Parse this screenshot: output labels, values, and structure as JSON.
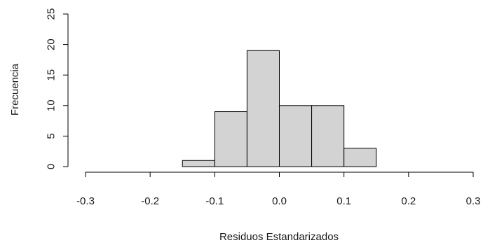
{
  "chart_data": {
    "type": "bar",
    "subtype": "histogram",
    "title": "",
    "xlabel": "Residuos Estandarizados",
    "ylabel": "Frecuencia",
    "bins": [
      {
        "from": -0.15,
        "to": -0.1,
        "count": 1
      },
      {
        "from": -0.1,
        "to": -0.05,
        "count": 9
      },
      {
        "from": -0.05,
        "to": 0.0,
        "count": 19
      },
      {
        "from": 0.0,
        "to": 0.05,
        "count": 10
      },
      {
        "from": 0.05,
        "to": 0.1,
        "count": 10
      },
      {
        "from": 0.1,
        "to": 0.15,
        "count": 3
      }
    ],
    "xlim": [
      -0.3,
      0.3
    ],
    "ylim": [
      0,
      25
    ],
    "x_ticks": [
      -0.3,
      -0.2,
      -0.1,
      0.0,
      0.1,
      0.2,
      0.3
    ],
    "x_tick_labels": [
      "-0.3",
      "-0.2",
      "-0.1",
      "0.0",
      "0.1",
      "0.2",
      "0.3"
    ],
    "y_ticks": [
      0,
      5,
      10,
      15,
      20,
      25
    ],
    "y_tick_labels": [
      "0",
      "5",
      "10",
      "15",
      "20",
      "25"
    ],
    "bar_color": "#d3d3d3",
    "edge_color": "#000000",
    "grid": false,
    "legend": "none"
  }
}
